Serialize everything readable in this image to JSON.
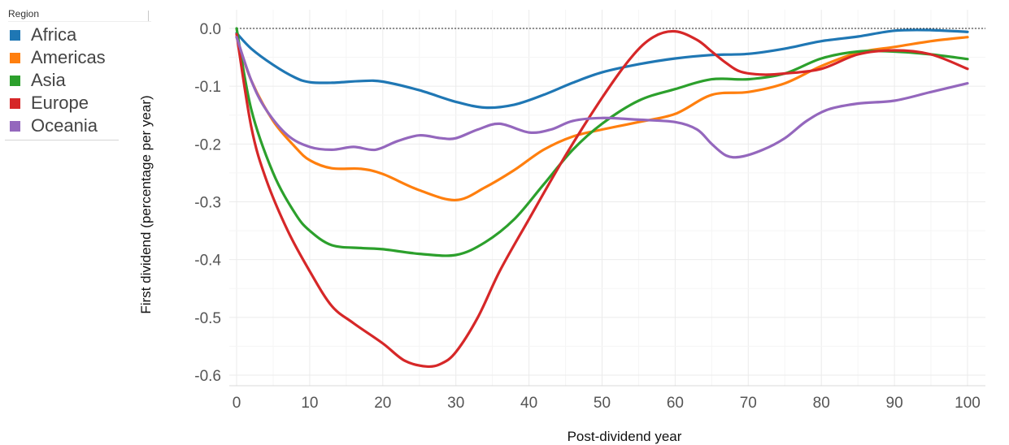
{
  "legend": {
    "title": "Region",
    "items": [
      {
        "label": "Africa",
        "color": "#1f77b4"
      },
      {
        "label": "Americas",
        "color": "#ff7f0e"
      },
      {
        "label": "Asia",
        "color": "#2ca02c"
      },
      {
        "label": "Europe",
        "color": "#d62728"
      },
      {
        "label": "Oceania",
        "color": "#9467bd"
      }
    ]
  },
  "chart_data": {
    "type": "line",
    "xlabel": "Post-dividend year",
    "ylabel": "First dividend (percentage per year)",
    "xlim": [
      0,
      100
    ],
    "ylim": [
      -0.6,
      0.0
    ],
    "xticks": [
      "0",
      "10",
      "20",
      "30",
      "40",
      "50",
      "60",
      "70",
      "80",
      "90",
      "100"
    ],
    "yticks": [
      "0.0",
      "-0.1",
      "-0.2",
      "-0.3",
      "-0.4",
      "-0.5",
      "-0.6"
    ],
    "grid": true,
    "reference_line": 0.0,
    "legend_placement": "top-left",
    "series": [
      {
        "name": "Africa",
        "color": "#1f77b4",
        "x": [
          0,
          2,
          5,
          8,
          10,
          13,
          17,
          20,
          25,
          30,
          34,
          38,
          42,
          46,
          50,
          55,
          60,
          65,
          70,
          75,
          80,
          85,
          90,
          95,
          100
        ],
        "y": [
          -0.008,
          -0.035,
          -0.063,
          -0.085,
          -0.093,
          -0.094,
          -0.091,
          -0.092,
          -0.107,
          -0.127,
          -0.137,
          -0.132,
          -0.115,
          -0.094,
          -0.076,
          -0.062,
          -0.052,
          -0.046,
          -0.044,
          -0.035,
          -0.022,
          -0.014,
          -0.004,
          -0.003,
          -0.006
        ]
      },
      {
        "name": "Americas",
        "color": "#ff7f0e",
        "x": [
          0,
          2,
          5,
          8,
          10,
          13,
          17,
          20,
          25,
          30,
          34,
          38,
          42,
          46,
          50,
          55,
          60,
          65,
          70,
          75,
          80,
          85,
          90,
          95,
          100
        ],
        "y": [
          -0.015,
          -0.09,
          -0.16,
          -0.205,
          -0.228,
          -0.242,
          -0.243,
          -0.252,
          -0.28,
          -0.297,
          -0.275,
          -0.245,
          -0.21,
          -0.187,
          -0.175,
          -0.162,
          -0.148,
          -0.115,
          -0.11,
          -0.095,
          -0.065,
          -0.042,
          -0.032,
          -0.022,
          -0.015
        ]
      },
      {
        "name": "Asia",
        "color": "#2ca02c",
        "x": [
          0,
          2,
          5,
          8,
          10,
          13,
          17,
          20,
          25,
          30,
          34,
          38,
          42,
          46,
          50,
          55,
          60,
          65,
          70,
          75,
          80,
          85,
          90,
          95,
          100
        ],
        "y": [
          0.0,
          -0.14,
          -0.25,
          -0.32,
          -0.35,
          -0.375,
          -0.38,
          -0.382,
          -0.39,
          -0.392,
          -0.37,
          -0.33,
          -0.27,
          -0.21,
          -0.165,
          -0.125,
          -0.105,
          -0.088,
          -0.088,
          -0.078,
          -0.052,
          -0.04,
          -0.04,
          -0.045,
          -0.053
        ]
      },
      {
        "name": "Europe",
        "color": "#d62728",
        "x": [
          0,
          2,
          4,
          7,
          10,
          13,
          16,
          20,
          23,
          26,
          28,
          30,
          33,
          36,
          40,
          45,
          50,
          54,
          57,
          60,
          63,
          65,
          67,
          69,
          72,
          75,
          80,
          85,
          90,
          95,
          100
        ],
        "y": [
          -0.01,
          -0.17,
          -0.26,
          -0.35,
          -0.42,
          -0.48,
          -0.51,
          -0.545,
          -0.575,
          -0.585,
          -0.58,
          -0.56,
          -0.5,
          -0.42,
          -0.33,
          -0.22,
          -0.12,
          -0.05,
          -0.015,
          -0.005,
          -0.02,
          -0.04,
          -0.06,
          -0.075,
          -0.08,
          -0.078,
          -0.07,
          -0.045,
          -0.038,
          -0.045,
          -0.07
        ]
      },
      {
        "name": "Oceania",
        "color": "#9467bd",
        "x": [
          0,
          2,
          4,
          7,
          10,
          13,
          16,
          19,
          22,
          25,
          28,
          30,
          33,
          36,
          40,
          43,
          46,
          50,
          55,
          60,
          63,
          65,
          67,
          69,
          72,
          75,
          78,
          81,
          85,
          90,
          95,
          100
        ],
        "y": [
          -0.015,
          -0.09,
          -0.14,
          -0.185,
          -0.205,
          -0.21,
          -0.205,
          -0.21,
          -0.195,
          -0.185,
          -0.19,
          -0.19,
          -0.175,
          -0.165,
          -0.18,
          -0.175,
          -0.16,
          -0.155,
          -0.158,
          -0.162,
          -0.175,
          -0.2,
          -0.22,
          -0.222,
          -0.21,
          -0.19,
          -0.16,
          -0.14,
          -0.13,
          -0.125,
          -0.11,
          -0.095
        ]
      }
    ]
  }
}
